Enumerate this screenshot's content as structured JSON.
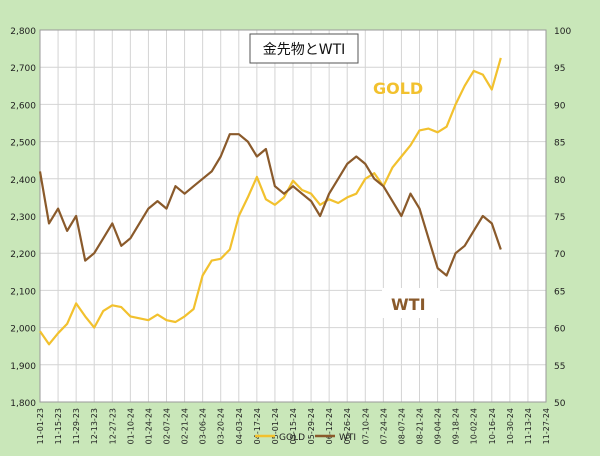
{
  "chart_data": {
    "type": "line",
    "title": "金先物とWTI",
    "x_ticks": [
      "11-01-23",
      "11-15-23",
      "11-29-23",
      "12-13-23",
      "12-27-23",
      "01-10-24",
      "01-24-24",
      "02-07-24",
      "02-21-24",
      "03-06-24",
      "03-20-24",
      "04-03-24",
      "04-17-24",
      "05-01-24",
      "05-15-24",
      "05-29-24",
      "06-12-24",
      "06-26-24",
      "07-10-24",
      "07-24-24",
      "08-07-24",
      "08-21-24",
      "09-04-24",
      "09-18-24",
      "10-02-24",
      "10-16-24",
      "10-30-24",
      "11-13-24",
      "11-27-24"
    ],
    "y_left": {
      "min": 1800,
      "max": 2800,
      "step": 100,
      "ticks": [
        "1,800",
        "1,900",
        "2,000",
        "2,100",
        "2,200",
        "2,300",
        "2,400",
        "2,500",
        "2,600",
        "2,700",
        "2,800"
      ]
    },
    "y_right": {
      "min": 50,
      "max": 100,
      "step": 5,
      "ticks": [
        "50",
        "55",
        "60",
        "65",
        "70",
        "75",
        "80",
        "85",
        "90",
        "95",
        "100"
      ]
    },
    "annotations": {
      "gold": "GOLD",
      "wti": "WTI"
    },
    "legend": {
      "position": "bottom",
      "items": [
        "GOLD",
        "WTI"
      ]
    },
    "colors": {
      "gold": "#f2c12e",
      "wti": "#8a5a2b",
      "plot_bg": "#ffffff",
      "frame_bg": "#c9e7b9",
      "grid": "#d4d4d4"
    },
    "series": [
      {
        "name": "GOLD",
        "axis": "left",
        "x": [
          "11-01-23",
          "11-08-23",
          "11-15-23",
          "11-22-23",
          "11-29-23",
          "12-06-23",
          "12-13-23",
          "12-20-23",
          "12-27-23",
          "01-03-24",
          "01-10-24",
          "01-17-24",
          "01-24-24",
          "01-31-24",
          "02-07-24",
          "02-14-24",
          "02-21-24",
          "02-28-24",
          "03-06-24",
          "03-13-24",
          "03-20-24",
          "03-27-24",
          "04-03-24",
          "04-10-24",
          "04-17-24",
          "04-24-24",
          "05-01-24",
          "05-08-24",
          "05-15-24",
          "05-22-24",
          "05-29-24",
          "06-05-24",
          "06-12-24",
          "06-19-24",
          "06-26-24",
          "07-03-24",
          "07-10-24",
          "07-17-24",
          "07-24-24",
          "07-31-24",
          "08-07-24",
          "08-14-24",
          "08-21-24",
          "08-28-24",
          "09-04-24",
          "09-11-24",
          "09-18-24",
          "09-25-24",
          "10-02-24",
          "10-09-24",
          "10-16-24",
          "10-23-24"
        ],
        "values": [
          1990,
          1955,
          1985,
          2010,
          2065,
          2030,
          2000,
          2045,
          2060,
          2055,
          2030,
          2025,
          2020,
          2035,
          2020,
          2015,
          2030,
          2050,
          2140,
          2180,
          2185,
          2210,
          2300,
          2350,
          2405,
          2345,
          2330,
          2350,
          2395,
          2370,
          2360,
          2330,
          2345,
          2335,
          2350,
          2360,
          2400,
          2415,
          2380,
          2430,
          2460,
          2490,
          2530,
          2535,
          2525,
          2540,
          2600,
          2650,
          2690,
          2680,
          2640,
          2725
        ]
      },
      {
        "name": "WTI",
        "axis": "right",
        "x": [
          "11-01-23",
          "11-08-23",
          "11-15-23",
          "11-22-23",
          "11-29-23",
          "12-06-23",
          "12-13-23",
          "12-20-23",
          "12-27-23",
          "01-03-24",
          "01-10-24",
          "01-17-24",
          "01-24-24",
          "01-31-24",
          "02-07-24",
          "02-14-24",
          "02-21-24",
          "02-28-24",
          "03-06-24",
          "03-13-24",
          "03-20-24",
          "03-27-24",
          "04-03-24",
          "04-10-24",
          "04-17-24",
          "04-24-24",
          "05-01-24",
          "05-08-24",
          "05-15-24",
          "05-22-24",
          "05-29-24",
          "06-05-24",
          "06-12-24",
          "06-19-24",
          "06-26-24",
          "07-03-24",
          "07-10-24",
          "07-17-24",
          "07-24-24",
          "07-31-24",
          "08-07-24",
          "08-14-24",
          "08-21-24",
          "08-28-24",
          "09-04-24",
          "09-11-24",
          "09-18-24",
          "09-25-24",
          "10-02-24",
          "10-09-24",
          "10-16-24",
          "10-23-24"
        ],
        "values": [
          81,
          74,
          76,
          73,
          75,
          69,
          70,
          72,
          74,
          71,
          72,
          74,
          76,
          77,
          76,
          79,
          78,
          79,
          80,
          81,
          83,
          86,
          86,
          85,
          83,
          84,
          79,
          78,
          79,
          78,
          77,
          75,
          78,
          80,
          82,
          83,
          82,
          80,
          79,
          77,
          75,
          78,
          76,
          72,
          68,
          67,
          70,
          71,
          73,
          75,
          74,
          70.5
        ]
      }
    ]
  }
}
